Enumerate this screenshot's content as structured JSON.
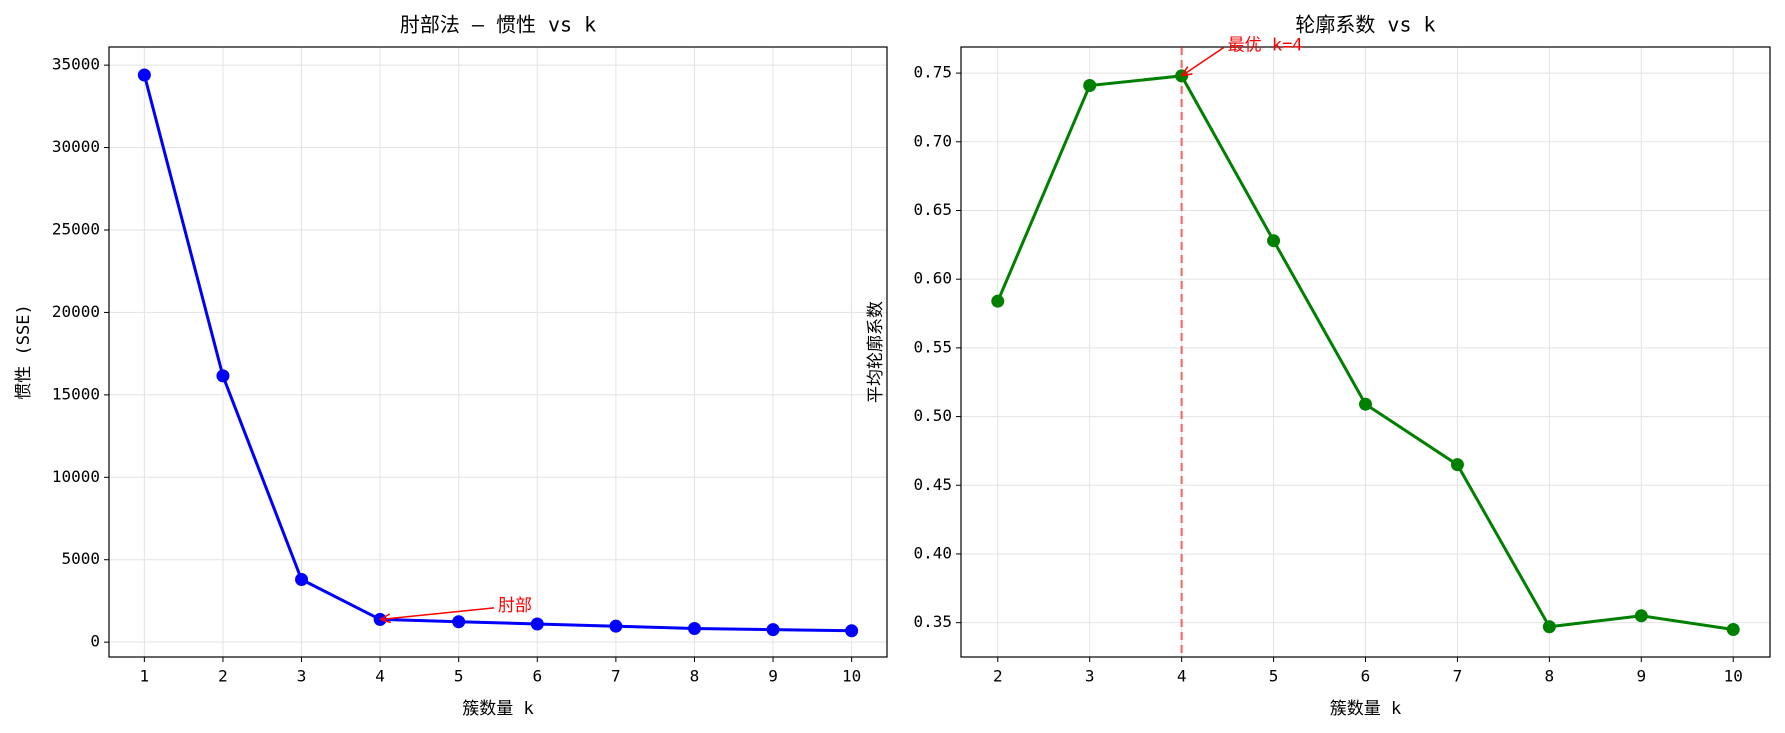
{
  "chart_data": [
    {
      "type": "line",
      "title": "肘部法 — 惯性 vs k",
      "xlabel": "簇数量 k",
      "ylabel": "惯性 (SSE)",
      "x": [
        1,
        2,
        3,
        4,
        5,
        6,
        7,
        8,
        9,
        10
      ],
      "values": [
        34400,
        16150,
        3800,
        1380,
        1240,
        1100,
        970,
        830,
        760,
        690
      ],
      "color": "#0000ff",
      "grid": true,
      "xlim": [
        0.55,
        10.45
      ],
      "ylim": [
        -900,
        36100
      ],
      "xticks": [
        1,
        2,
        3,
        4,
        5,
        6,
        7,
        8,
        9,
        10
      ],
      "yticks": [
        0,
        5000,
        10000,
        15000,
        20000,
        25000,
        30000,
        35000
      ],
      "annotations": [
        {
          "text": "肘部",
          "xy": [
            4,
            1380
          ],
          "xytext": [
            5.5,
            2200
          ],
          "color": "#ff0000"
        }
      ]
    },
    {
      "type": "line",
      "title": "轮廓系数 vs k",
      "xlabel": "簇数量 k",
      "ylabel": "平均轮廓系数",
      "x": [
        2,
        3,
        4,
        5,
        6,
        7,
        8,
        9,
        10
      ],
      "values": [
        0.584,
        0.741,
        0.748,
        0.628,
        0.509,
        0.465,
        0.347,
        0.355,
        0.345
      ],
      "color": "#008000",
      "grid": true,
      "xlim": [
        1.6,
        10.4
      ],
      "ylim": [
        0.325,
        0.769
      ],
      "xticks": [
        2,
        3,
        4,
        5,
        6,
        7,
        8,
        9,
        10
      ],
      "yticks": [
        0.35,
        {
          "value": 0.4,
          "label": "0.40"
        },
        0.45,
        {
          "value": 0.5,
          "label": "0.50"
        },
        0.55,
        {
          "value": 0.6,
          "label": "0.60"
        },
        0.65,
        {
          "value": 0.7,
          "label": "0.70"
        },
        0.75
      ],
      "vline": {
        "x": 4,
        "color": "#ff0000"
      },
      "annotations": [
        {
          "text": "最优 k=4",
          "xy": [
            4,
            0.748
          ],
          "xytext": [
            4.5,
            0.77
          ],
          "color": "#ff0000"
        }
      ]
    }
  ]
}
